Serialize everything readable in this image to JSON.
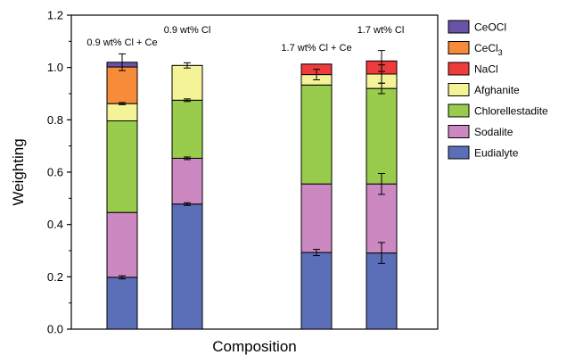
{
  "chart_data": {
    "type": "bar",
    "stacked": true,
    "xlabel": "Composition",
    "ylabel": "Weighting",
    "ylim": [
      0,
      1.2
    ],
    "yticks": [
      "0.0",
      "0.2",
      "0.4",
      "0.6",
      "0.8",
      "1.0",
      "1.2"
    ],
    "grid": false,
    "legend_position": "top-right",
    "categories": [
      "0.9 wt% Cl + Ce",
      "0.9 wt% Cl",
      "1.7 wt% Cl + Ce",
      "1.7 wt% Cl"
    ],
    "series": [
      {
        "name": "Eudialyte",
        "color": "#5b6fb8",
        "values": [
          0.198,
          0.478,
          0.293,
          0.291
        ],
        "errors": [
          0.006,
          0.005,
          0.012,
          0.04
        ]
      },
      {
        "name": "Sodalite",
        "color": "#cc88c0",
        "values": [
          0.248,
          0.175,
          0.262,
          0.264
        ],
        "errors": [
          0.0,
          0.005,
          0.0,
          0.04
        ]
      },
      {
        "name": "Chlorellestadite",
        "color": "#99cc4c",
        "values": [
          0.35,
          0.222,
          0.378,
          0.365
        ],
        "errors": [
          0.0,
          0.005,
          0.0,
          0.02
        ]
      },
      {
        "name": "Afghanite",
        "color": "#f5f398",
        "values": [
          0.066,
          0.133,
          0.04,
          0.055
        ],
        "errors": [
          0.004,
          0.01,
          0.02,
          0.035
        ]
      },
      {
        "name": "NaCl",
        "color": "#ee3b3b",
        "values": [
          0.0,
          0.0,
          0.04,
          0.05
        ],
        "errors": [
          0.0,
          0.0,
          0.0,
          0.04
        ]
      },
      {
        "name": "CeCl3",
        "legend_base": "CeCl",
        "legend_sub": "3",
        "color": "#f68b3a",
        "values": [
          0.14,
          0.0,
          0.0,
          0.0
        ],
        "errors": [
          0.0,
          0.0,
          0.0,
          0.0
        ]
      },
      {
        "name": "CeOCl",
        "color": "#6a52a8",
        "values": [
          0.018,
          0.0,
          0.0,
          0.0
        ],
        "errors": [
          0.032,
          0.0,
          0.0,
          0.0
        ]
      }
    ],
    "legend_order": [
      "CeOCl",
      "CeCl3",
      "NaCl",
      "Afghanite",
      "Chlorellestadite",
      "Sodalite",
      "Eudialyte"
    ]
  }
}
